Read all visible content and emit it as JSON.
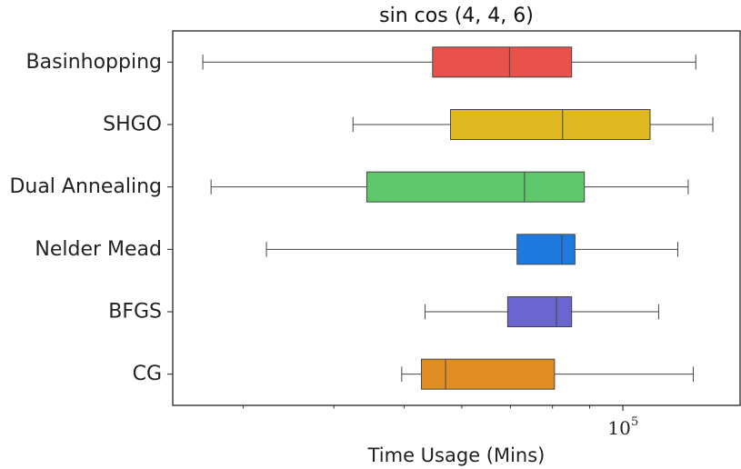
{
  "chart_data": {
    "type": "boxplot",
    "orientation": "horizontal",
    "title": "sin cos (4, 4, 6)",
    "xlabel": "Time Usage (Mins)",
    "ylabel": "",
    "xscale": "log",
    "xlim": [
      24000,
      145000
    ],
    "xticks": [
      {
        "value": 100000,
        "base": "10",
        "exp": "5"
      }
    ],
    "grid": false,
    "series": [
      {
        "name": "Basinhopping",
        "whisker_low": 26400,
        "q1": 54700,
        "median": 69800,
        "q3": 85000,
        "whisker_high": 126000,
        "color": "#e8524a"
      },
      {
        "name": "SHGO",
        "whisker_low": 42500,
        "q1": 57900,
        "median": 82600,
        "q3": 109000,
        "whisker_high": 133000,
        "color": "#e0b820"
      },
      {
        "name": "Dual Annealing",
        "whisker_low": 27100,
        "q1": 44400,
        "median": 73200,
        "q3": 88500,
        "whisker_high": 123000,
        "color": "#5ec76c"
      },
      {
        "name": "Nelder Mead",
        "whisker_low": 32300,
        "q1": 71500,
        "median": 82400,
        "q3": 85900,
        "whisker_high": 119000,
        "color": "#1f7ae0"
      },
      {
        "name": "BFGS",
        "whisker_low": 53400,
        "q1": 69400,
        "median": 81000,
        "q3": 85000,
        "whisker_high": 112000,
        "color": "#6a65cf"
      },
      {
        "name": "CG",
        "whisker_low": 49600,
        "q1": 52800,
        "median": 57000,
        "q3": 80500,
        "whisker_high": 125000,
        "color": "#e08e22"
      }
    ]
  }
}
